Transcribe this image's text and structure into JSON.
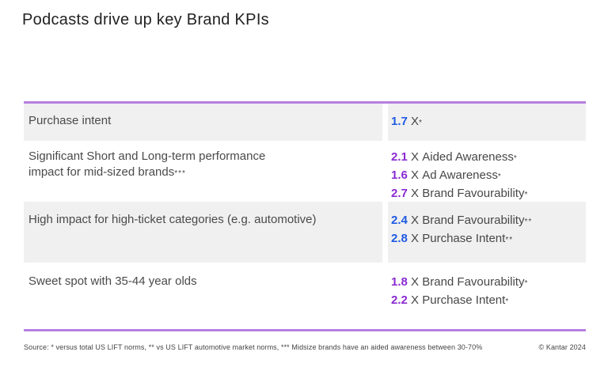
{
  "title": "Podcasts drive up key Brand KPIs",
  "colors": {
    "accent_blue": "#1E5BE2",
    "accent_purple": "#8A2BD2",
    "table_border_purple": "#B77FE0",
    "row_shading_gray": "#F1F0F0"
  },
  "table": {
    "rows": [
      {
        "label": "Purchase intent",
        "label_note": "",
        "shaded": true,
        "metrics": [
          {
            "value": "1.7",
            "unit": "X",
            "kpi": "",
            "note": "*",
            "color": "blue"
          }
        ]
      },
      {
        "label": "Significant Short and Long-term performance\nimpact for mid-sized brands",
        "label_note": "***",
        "shaded": false,
        "metrics": [
          {
            "value": "2.1",
            "unit": "X",
            "kpi": "Aided Awareness",
            "note": "*",
            "color": "purple"
          },
          {
            "value": "1.6",
            "unit": "X",
            "kpi": "Ad Awareness",
            "note": "*",
            "color": "purple"
          },
          {
            "value": "2.7",
            "unit": "X",
            "kpi": "Brand Favourability",
            "note": "*",
            "color": "purple"
          }
        ]
      },
      {
        "label": "High impact for high-ticket categories (e.g. automotive)",
        "label_note": "",
        "shaded": true,
        "metrics": [
          {
            "value": "2.4",
            "unit": "X",
            "kpi": "Brand Favourability",
            "note": "**",
            "color": "blue"
          },
          {
            "value": "2.8",
            "unit": "X",
            "kpi": "Purchase Intent",
            "note": "**",
            "color": "blue"
          }
        ]
      },
      {
        "label": "Sweet spot with 35-44 year olds",
        "label_note": "",
        "shaded": false,
        "metrics": [
          {
            "value": "1.8",
            "unit": "X",
            "kpi": "Brand Favourability",
            "note": "*",
            "color": "purple"
          },
          {
            "value": "2.2",
            "unit": "X",
            "kpi": "Purchase Intent",
            "note": "*",
            "color": "purple"
          }
        ]
      }
    ]
  },
  "footer": {
    "source": "Source: * versus total US LIFT norms, ** vs US LIFT automotive market norms, *** Midsize brands have an aided awareness between 30-70%",
    "copyright": "© Kantar 2024"
  }
}
